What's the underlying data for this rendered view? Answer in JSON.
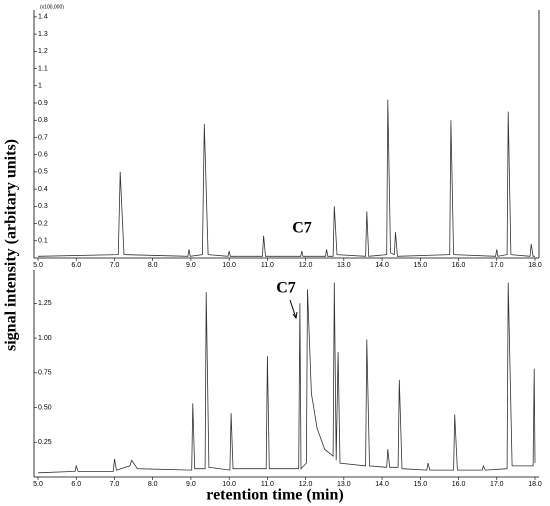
{
  "chart_data": [
    {
      "type": "line",
      "annotations": [
        "(x100,000)",
        "C7"
      ],
      "x": [
        5.0,
        7.1,
        7.15,
        7.25,
        8.92,
        8.95,
        8.98,
        9.3,
        9.35,
        9.45,
        9.97,
        10.0,
        10.03,
        10.87,
        10.9,
        10.95,
        11.87,
        11.9,
        11.93,
        12.52,
        12.55,
        12.58,
        12.72,
        12.75,
        12.82,
        13.57,
        13.6,
        13.65,
        14.12,
        14.15,
        14.22,
        14.32,
        14.35,
        14.4,
        15.77,
        15.8,
        15.87,
        16.97,
        17.0,
        17.03,
        17.27,
        17.3,
        17.37,
        17.87,
        17.9,
        17.95,
        18.0
      ],
      "values": [
        0.01,
        0.02,
        0.5,
        0.02,
        0.01,
        0.05,
        0.01,
        0.02,
        0.78,
        0.02,
        0.01,
        0.04,
        0.01,
        0.01,
        0.13,
        0.01,
        0.01,
        0.04,
        0.01,
        0.01,
        0.05,
        0.01,
        0.01,
        0.3,
        0.02,
        0.01,
        0.27,
        0.01,
        0.02,
        0.92,
        0.03,
        0.02,
        0.15,
        0.01,
        0.02,
        0.8,
        0.02,
        0.01,
        0.05,
        0.01,
        0.02,
        0.85,
        0.02,
        0.01,
        0.08,
        0.01,
        0.01
      ],
      "color": "#333333",
      "xlim": [
        5,
        18
      ],
      "xticks": [
        {
          "value": 5,
          "label": "5.0"
        },
        {
          "value": 6,
          "label": "6.0"
        },
        {
          "value": 7,
          "label": "7.0"
        },
        {
          "value": 8,
          "label": "8.0"
        },
        {
          "value": 9,
          "label": "9.0"
        },
        {
          "value": 10,
          "label": "10.0"
        },
        {
          "value": 11,
          "label": "11.0"
        },
        {
          "value": 12,
          "label": "12.0"
        },
        {
          "value": 13,
          "label": "13.0"
        },
        {
          "value": 14,
          "label": "14.0"
        },
        {
          "value": 15,
          "label": "15.0"
        },
        {
          "value": 16,
          "label": "16.0"
        },
        {
          "value": 17,
          "label": "17.0"
        },
        {
          "value": 18,
          "label": "18.0"
        }
      ],
      "ylim": [
        0,
        1.44
      ],
      "yticks": [
        0.1,
        0.2,
        0.3,
        0.4,
        0.5,
        0.6,
        0.7,
        0.8,
        0.9,
        1.0,
        1.1,
        1.2,
        1.3,
        1.4
      ]
    },
    {
      "type": "line",
      "annotations": [
        "C7"
      ],
      "xlabel": "retention time (min)",
      "ylabel": "signal intensity (arbitary units)",
      "x": [
        5.0,
        5.97,
        6.0,
        6.05,
        6.97,
        7.0,
        7.05,
        7.4,
        7.45,
        7.6,
        9.02,
        9.05,
        9.1,
        9.37,
        9.4,
        9.47,
        10.02,
        10.05,
        10.1,
        10.97,
        11.0,
        11.05,
        11.82,
        11.85,
        11.88,
        12.02,
        12.05,
        12.15,
        12.3,
        12.5,
        12.72,
        12.75,
        12.8,
        12.85,
        12.9,
        13.57,
        13.6,
        13.67,
        14.12,
        14.15,
        14.2,
        14.42,
        14.45,
        14.52,
        15.17,
        15.2,
        15.25,
        15.87,
        15.9,
        15.97,
        16.62,
        16.65,
        16.7,
        17.27,
        17.3,
        17.4,
        17.95,
        17.98,
        18.0
      ],
      "values": [
        0.03,
        0.04,
        0.08,
        0.04,
        0.04,
        0.13,
        0.05,
        0.08,
        0.12,
        0.06,
        0.05,
        0.53,
        0.06,
        0.06,
        1.33,
        0.07,
        0.05,
        0.46,
        0.06,
        0.06,
        0.87,
        0.06,
        0.06,
        1.25,
        0.06,
        0.1,
        1.35,
        0.6,
        0.35,
        0.2,
        0.15,
        1.4,
        0.12,
        0.9,
        0.1,
        0.08,
        0.99,
        0.08,
        0.07,
        0.2,
        0.07,
        0.07,
        0.7,
        0.06,
        0.05,
        0.1,
        0.05,
        0.05,
        0.45,
        0.05,
        0.05,
        0.08,
        0.05,
        0.06,
        1.4,
        0.08,
        0.08,
        0.78,
        0.1
      ],
      "color": "#333333",
      "xlim": [
        5,
        18
      ],
      "xticks": [
        {
          "value": 5,
          "label": "5.0"
        },
        {
          "value": 6,
          "label": "6.0"
        },
        {
          "value": 7,
          "label": "7.0"
        },
        {
          "value": 8,
          "label": "8.0"
        },
        {
          "value": 9,
          "label": "9.0"
        },
        {
          "value": 10,
          "label": "10.0"
        },
        {
          "value": 11,
          "label": "11.0"
        },
        {
          "value": 12,
          "label": "12.0"
        },
        {
          "value": 13,
          "label": "13.0"
        },
        {
          "value": 14,
          "label": "14.0"
        },
        {
          "value": 15,
          "label": "15.0"
        },
        {
          "value": 16,
          "label": "16.0"
        },
        {
          "value": 17,
          "label": "17.0"
        },
        {
          "value": 18,
          "label": "18.0"
        }
      ],
      "ylim": [
        0,
        1.49
      ],
      "yticks": [
        0.25,
        {
          "value": 0.5,
          "label": "0.50"
        },
        0.75,
        {
          "value": 1,
          "label": "1.00"
        },
        1.25
      ]
    }
  ]
}
